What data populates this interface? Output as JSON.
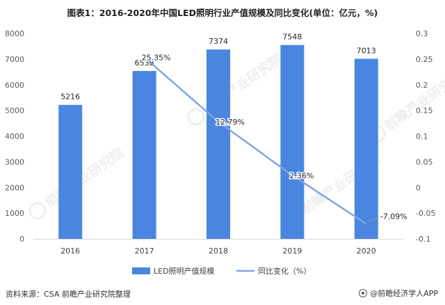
{
  "title": "图表1：2016-2020年中国LED照明行业产值规模及同比变化(单位：亿元，%)",
  "footer": {
    "source": "资料来源：CSA 前瞻产业研究院整理",
    "brand": "@前瞻经济学人APP"
  },
  "watermark": "前瞻产业研究院",
  "colors": {
    "bar": "#4a86e0",
    "line": "#7fa6e0",
    "grid": "#e6e6e6",
    "text": "#595959"
  },
  "chart_data": {
    "type": "bar",
    "categories": [
      "2016",
      "2017",
      "2018",
      "2019",
      "2020"
    ],
    "series": [
      {
        "name": "LED照明产值规模",
        "type": "bar",
        "axis": "left",
        "values": [
          5216,
          6538,
          7374,
          7548,
          7013
        ],
        "labels": [
          "5216",
          "6538",
          "7374",
          "7548",
          "7013"
        ]
      },
      {
        "name": "同比变化（%）",
        "type": "line",
        "axis": "right",
        "values": [
          null,
          0.2535,
          0.1279,
          0.0236,
          -0.0709
        ],
        "labels": [
          "",
          "25.35%",
          "12.79%",
          "2.36%",
          "-7.09%"
        ]
      }
    ],
    "y_left": {
      "range": [
        0,
        8000
      ],
      "ticks": [
        "0",
        "1000",
        "2000",
        "3000",
        "4000",
        "5000",
        "6000",
        "7000",
        "8000"
      ]
    },
    "y_right": {
      "range": [
        -0.1,
        0.3
      ],
      "ticks": [
        "-0.1",
        "-0.05",
        "0",
        "0.05",
        "0.1",
        "0.15",
        "0.2",
        "0.25",
        "0.3"
      ]
    },
    "grid": false,
    "legend": "bottom"
  }
}
